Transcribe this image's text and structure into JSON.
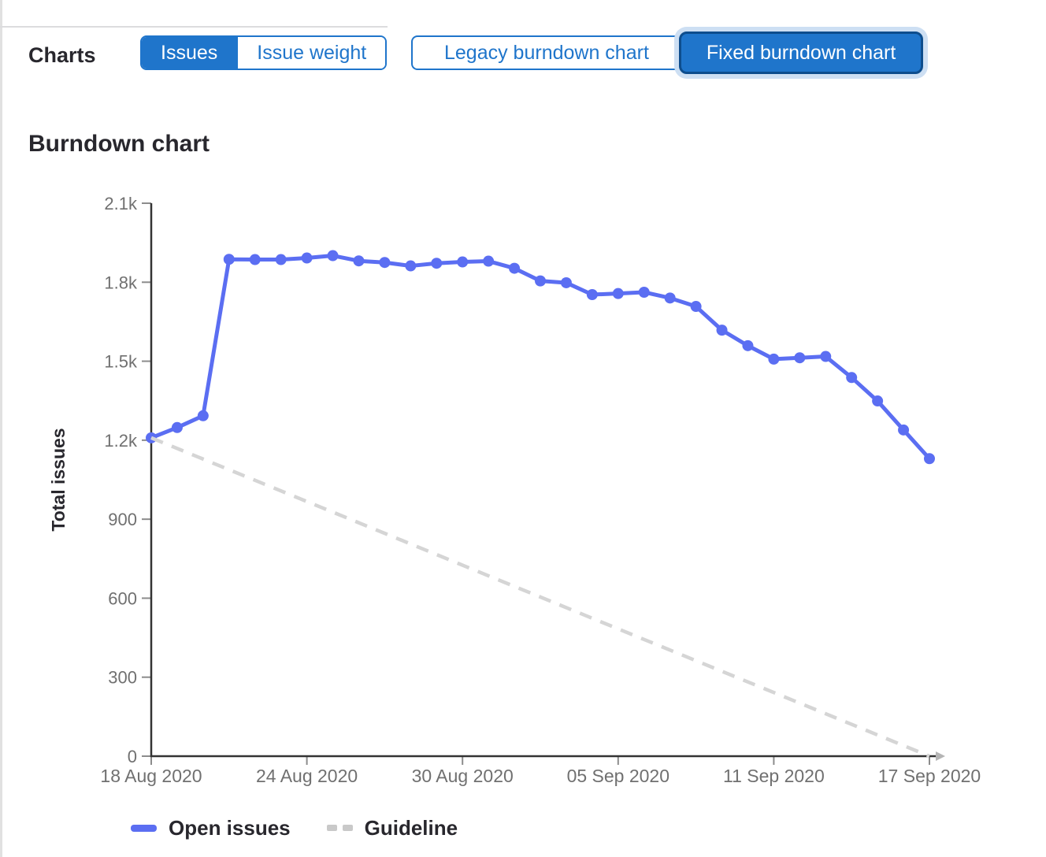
{
  "header": {
    "charts_label": "Charts",
    "issue_toggle": {
      "options": [
        {
          "label": "Issues",
          "selected": true
        },
        {
          "label": "Issue weight",
          "selected": false
        }
      ]
    },
    "chart_type_toggle": {
      "options": [
        {
          "label": "Legacy burndown chart",
          "selected": false
        },
        {
          "label": "Fixed burndown chart",
          "selected": true,
          "focused": true
        }
      ]
    }
  },
  "section_title": "Burndown chart",
  "chart_data": {
    "type": "line",
    "title": "Burndown chart",
    "xlabel": "",
    "ylabel": "Total issues",
    "ylim": [
      0,
      2100
    ],
    "y_ticks": [
      0,
      300,
      600,
      900,
      1200,
      1500,
      1800,
      2100
    ],
    "y_tick_labels": [
      "0",
      "300",
      "600",
      "900",
      "1.2k",
      "1.5k",
      "1.8k",
      "2.1k"
    ],
    "x_range_days": [
      0,
      30
    ],
    "x_tick_days": [
      0,
      6,
      12,
      18,
      24,
      30
    ],
    "x_tick_labels": [
      "18 Aug 2020",
      "24 Aug 2020",
      "30 Aug 2020",
      "05 Sep 2020",
      "11 Sep 2020",
      "17 Sep 2020"
    ],
    "grid": false,
    "legend_position": "bottom",
    "dates": [
      "18 Aug 2020",
      "19 Aug 2020",
      "20 Aug 2020",
      "21 Aug 2020",
      "22 Aug 2020",
      "23 Aug 2020",
      "24 Aug 2020",
      "25 Aug 2020",
      "26 Aug 2020",
      "27 Aug 2020",
      "28 Aug 2020",
      "29 Aug 2020",
      "30 Aug 2020",
      "31 Aug 2020",
      "01 Sep 2020",
      "02 Sep 2020",
      "03 Sep 2020",
      "04 Sep 2020",
      "05 Sep 2020",
      "06 Sep 2020",
      "07 Sep 2020",
      "08 Sep 2020",
      "09 Sep 2020",
      "10 Sep 2020",
      "11 Sep 2020",
      "12 Sep 2020",
      "13 Sep 2020",
      "14 Sep 2020",
      "15 Sep 2020",
      "16 Sep 2020",
      "17 Sep 2020"
    ],
    "series": [
      {
        "name": "Open issues",
        "style": "solid",
        "color": "#5b6ef2",
        "values": [
          1209,
          1248,
          1293,
          1887,
          1886,
          1886,
          1892,
          1901,
          1881,
          1875,
          1862,
          1872,
          1877,
          1880,
          1853,
          1805,
          1798,
          1753,
          1757,
          1762,
          1740,
          1708,
          1618,
          1559,
          1508,
          1513,
          1518,
          1438,
          1349,
          1239,
          1130
        ]
      },
      {
        "name": "Guideline",
        "style": "dashed",
        "color": "#d5d5d5",
        "x_days": [
          0,
          30
        ],
        "values": [
          1209,
          0
        ]
      }
    ]
  },
  "legend": {
    "items": [
      {
        "label": "Open issues",
        "marker": "solid",
        "color": "#5b6ef2"
      },
      {
        "label": "Guideline",
        "marker": "dashed",
        "color": "#c9c9c9"
      }
    ]
  },
  "colors": {
    "accent_blue": "#1f75cb",
    "selected_border": "#0d4d8d",
    "focus_halo": "#cddff3",
    "line_blue": "#5b6ef2",
    "guideline_gray": "#d5d5d5",
    "axis_line": "#333333",
    "tick_mark": "#8c8c8c",
    "tick_label": "#707070",
    "text_dark": "#28272d"
  }
}
